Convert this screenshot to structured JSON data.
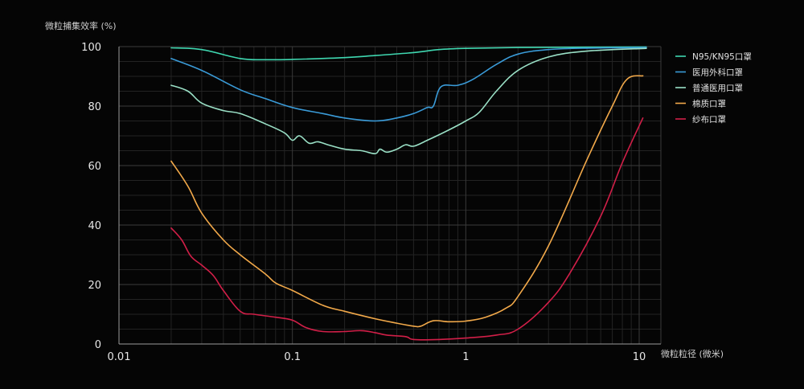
{
  "chart_data": {
    "type": "line",
    "title": "",
    "ylabel": "微粒捕集效率 (%)",
    "xlabel": "微粒粒径 (微米)",
    "x_scale": "log",
    "xlim": [
      0.01,
      12
    ],
    "ylim": [
      0,
      100
    ],
    "x_ticks": [
      {
        "value": 0.01,
        "label": "0.01"
      },
      {
        "value": 0.1,
        "label": "0.1"
      },
      {
        "value": 1,
        "label": "1"
      },
      {
        "value": 10,
        "label": "10"
      }
    ],
    "y_ticks": [
      {
        "value": 0,
        "label": "0"
      },
      {
        "value": 20,
        "label": "20"
      },
      {
        "value": 40,
        "label": "40"
      },
      {
        "value": 60,
        "label": "60"
      },
      {
        "value": 80,
        "label": "80"
      },
      {
        "value": 100,
        "label": "100"
      }
    ],
    "grid": true,
    "legend_position": "right",
    "series": [
      {
        "name": "N95/KN95口罩",
        "color": "#3fd7b0",
        "points": [
          [
            0.02,
            99.6
          ],
          [
            0.03,
            99.0
          ],
          [
            0.05,
            96.0
          ],
          [
            0.07,
            95.6
          ],
          [
            0.1,
            95.7
          ],
          [
            0.2,
            96.3
          ],
          [
            0.3,
            97.0
          ],
          [
            0.5,
            98.0
          ],
          [
            0.7,
            99.0
          ],
          [
            1.0,
            99.4
          ],
          [
            2.0,
            99.7
          ],
          [
            5.0,
            99.8
          ],
          [
            11.0,
            99.9
          ]
        ]
      },
      {
        "name": "医用外科口罩",
        "color": "#3a9bd8",
        "points": [
          [
            0.02,
            96.0
          ],
          [
            0.03,
            92.0
          ],
          [
            0.05,
            85.5
          ],
          [
            0.07,
            82.5
          ],
          [
            0.1,
            79.5
          ],
          [
            0.15,
            77.5
          ],
          [
            0.2,
            76.0
          ],
          [
            0.3,
            75.0
          ],
          [
            0.4,
            76.0
          ],
          [
            0.5,
            77.5
          ],
          [
            0.6,
            79.5
          ],
          [
            0.65,
            80.0
          ],
          [
            0.72,
            86.5
          ],
          [
            0.9,
            87.0
          ],
          [
            1.1,
            89.0
          ],
          [
            1.5,
            94.0
          ],
          [
            2.0,
            97.5
          ],
          [
            3.0,
            99.0
          ],
          [
            5.0,
            99.5
          ],
          [
            11.0,
            99.7
          ]
        ]
      },
      {
        "name": "普通医用口罩",
        "color": "#9ae0c6",
        "points": [
          [
            0.02,
            87.0
          ],
          [
            0.025,
            85.0
          ],
          [
            0.03,
            81.0
          ],
          [
            0.04,
            78.5
          ],
          [
            0.05,
            77.5
          ],
          [
            0.07,
            74.0
          ],
          [
            0.09,
            71.0
          ],
          [
            0.1,
            68.5
          ],
          [
            0.11,
            70.0
          ],
          [
            0.125,
            67.5
          ],
          [
            0.14,
            68.0
          ],
          [
            0.16,
            67.0
          ],
          [
            0.2,
            65.5
          ],
          [
            0.25,
            65.0
          ],
          [
            0.3,
            64.0
          ],
          [
            0.32,
            65.5
          ],
          [
            0.35,
            64.5
          ],
          [
            0.4,
            65.5
          ],
          [
            0.45,
            67.0
          ],
          [
            0.5,
            66.5
          ],
          [
            0.6,
            68.5
          ],
          [
            0.8,
            72.0
          ],
          [
            1.0,
            75.0
          ],
          [
            1.2,
            78.0
          ],
          [
            1.5,
            85.0
          ],
          [
            2.0,
            92.0
          ],
          [
            3.0,
            96.5
          ],
          [
            5.0,
            98.5
          ],
          [
            11.0,
            99.4
          ]
        ]
      },
      {
        "name": "棉质口罩",
        "color": "#f2a94a",
        "points": [
          [
            0.02,
            61.5
          ],
          [
            0.025,
            53.0
          ],
          [
            0.03,
            44.0
          ],
          [
            0.04,
            35.0
          ],
          [
            0.05,
            30.0
          ],
          [
            0.07,
            23.5
          ],
          [
            0.08,
            20.5
          ],
          [
            0.1,
            18.0
          ],
          [
            0.15,
            13.0
          ],
          [
            0.2,
            11.0
          ],
          [
            0.3,
            8.5
          ],
          [
            0.4,
            7.0
          ],
          [
            0.5,
            6.0
          ],
          [
            0.55,
            6.0
          ],
          [
            0.65,
            7.8
          ],
          [
            0.8,
            7.5
          ],
          [
            1.0,
            7.7
          ],
          [
            1.3,
            9.0
          ],
          [
            1.7,
            12.0
          ],
          [
            2.0,
            16.0
          ],
          [
            3.0,
            33.0
          ],
          [
            5.0,
            62.0
          ],
          [
            7.0,
            80.0
          ],
          [
            8.5,
            89.0
          ],
          [
            10.5,
            90.2
          ]
        ]
      },
      {
        "name": "纱布口罩",
        "color": "#d11f48",
        "points": [
          [
            0.02,
            39.0
          ],
          [
            0.023,
            35.0
          ],
          [
            0.026,
            29.5
          ],
          [
            0.03,
            26.5
          ],
          [
            0.035,
            23.0
          ],
          [
            0.04,
            18.0
          ],
          [
            0.05,
            11.0
          ],
          [
            0.06,
            10.0
          ],
          [
            0.08,
            9.0
          ],
          [
            0.1,
            8.0
          ],
          [
            0.12,
            5.5
          ],
          [
            0.15,
            4.2
          ],
          [
            0.2,
            4.2
          ],
          [
            0.25,
            4.5
          ],
          [
            0.3,
            3.8
          ],
          [
            0.35,
            3.0
          ],
          [
            0.45,
            2.5
          ],
          [
            0.5,
            1.5
          ],
          [
            0.7,
            1.5
          ],
          [
            1.0,
            2.0
          ],
          [
            1.5,
            3.0
          ],
          [
            2.0,
            5.0
          ],
          [
            3.0,
            14.0
          ],
          [
            4.0,
            24.0
          ],
          [
            6.0,
            43.0
          ],
          [
            8.0,
            61.0
          ],
          [
            10.5,
            76.0
          ]
        ]
      }
    ]
  }
}
